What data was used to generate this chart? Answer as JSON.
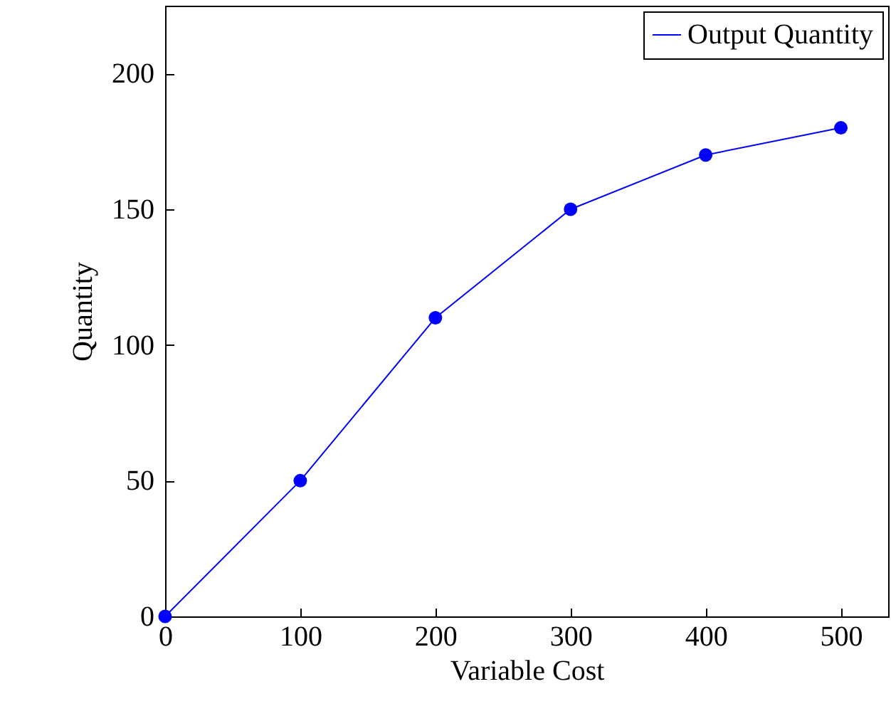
{
  "chart_data": {
    "type": "line",
    "xlabel": "Variable Cost",
    "ylabel": "Quantity",
    "x": [
      0,
      100,
      200,
      300,
      400,
      500
    ],
    "series": [
      {
        "name": "Output Quantity",
        "color": "#0000ff",
        "values": [
          0,
          50,
          110,
          150,
          170,
          180
        ]
      }
    ],
    "xlim": [
      0,
      535
    ],
    "ylim": [
      0,
      225
    ],
    "xticks": [
      0,
      100,
      200,
      300,
      400,
      500
    ],
    "yticks": [
      0,
      50,
      100,
      150,
      200
    ],
    "marker": "circle",
    "line_style": "solid",
    "legend": "top right",
    "grid": false
  }
}
